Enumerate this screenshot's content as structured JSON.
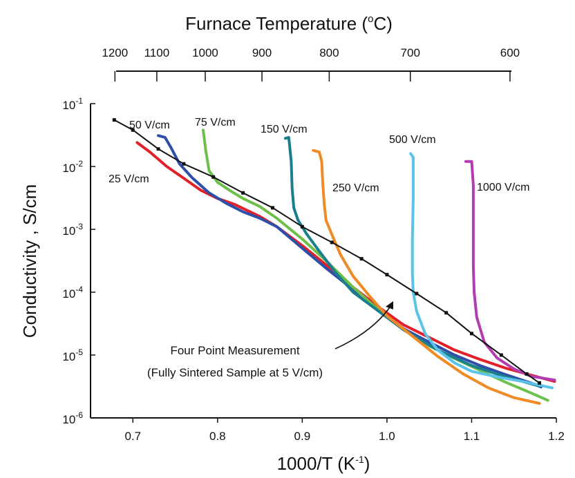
{
  "chart_data": {
    "type": "line",
    "xlabel": "1000/T (K",
    "xlabel_sup": "-1",
    "xlabel_close": ")",
    "ylabel": "Conductivity , S/cm",
    "top_axis_title": "Furnace Temperature (",
    "top_axis_title_sup": "o",
    "top_axis_title_close": "C)",
    "xlim": [
      0.65,
      1.2
    ],
    "ylim_log10": [
      -6,
      -1
    ],
    "x_ticks": [
      "0.7",
      "0.8",
      "0.9",
      "1.0",
      "1.1",
      "1.2"
    ],
    "y_ticks": [
      {
        "base": "10",
        "exp": "-1"
      },
      {
        "base": "10",
        "exp": "-2"
      },
      {
        "base": "10",
        "exp": "-3"
      },
      {
        "base": "10",
        "exp": "-4"
      },
      {
        "base": "10",
        "exp": "-5"
      },
      {
        "base": "10",
        "exp": "-6"
      }
    ],
    "top_ticks_celsius": [
      "1200",
      "1100",
      "1000",
      "900",
      "800",
      "700",
      "600"
    ],
    "series": [
      {
        "name": "Four Point Measurement",
        "color": "#111111",
        "markers": true,
        "x": [
          0.678,
          0.7,
          0.73,
          0.76,
          0.795,
          0.83,
          0.865,
          0.9,
          0.935,
          0.97,
          1.0,
          1.035,
          1.07,
          1.1,
          1.135,
          1.165,
          1.18
        ],
        "y": [
          0.055,
          0.038,
          0.019,
          0.011,
          0.0068,
          0.0038,
          0.0022,
          0.0011,
          0.00062,
          0.00034,
          0.00019,
          9.5e-05,
          4.7e-05,
          2.2e-05,
          1e-05,
          5e-06,
          3.6e-06
        ]
      },
      {
        "name": "25 V/cm",
        "color": "#e2202a",
        "markers": false,
        "x": [
          0.705,
          0.72,
          0.74,
          0.76,
          0.78,
          0.8,
          0.82,
          0.85,
          0.87,
          0.9,
          0.93,
          0.96,
          0.99,
          1.02,
          1.05,
          1.08,
          1.11,
          1.14,
          1.17,
          1.198
        ],
        "y": [
          0.024,
          0.017,
          0.01,
          0.0065,
          0.0042,
          0.0031,
          0.0025,
          0.0016,
          0.0011,
          0.00055,
          0.00026,
          0.00012,
          5.8e-05,
          3e-05,
          1.9e-05,
          1.2e-05,
          8.5e-06,
          6.2e-06,
          4.8e-06,
          3.8e-06
        ]
      },
      {
        "name": "50 V/cm",
        "color": "#2e4fa8",
        "markers": false,
        "x": [
          0.73,
          0.738,
          0.745,
          0.755,
          0.77,
          0.79,
          0.81,
          0.83,
          0.85,
          0.87,
          0.9,
          0.93,
          0.96,
          0.99,
          1.02,
          1.05,
          1.08,
          1.11,
          1.14,
          1.17,
          1.182
        ],
        "y": [
          0.031,
          0.029,
          0.02,
          0.011,
          0.0066,
          0.0038,
          0.0026,
          0.0019,
          0.0015,
          0.0011,
          0.0005,
          0.00023,
          0.00011,
          5.2e-05,
          2.6e-05,
          1.6e-05,
          1e-05,
          6.8e-06,
          4.9e-06,
          3.6e-06,
          3.1e-06
        ]
      },
      {
        "name": "75 V/cm",
        "color": "#6cc04a",
        "markers": false,
        "x": [
          0.783,
          0.784,
          0.786,
          0.79,
          0.8,
          0.815,
          0.83,
          0.85,
          0.87,
          0.9,
          0.93,
          0.96,
          0.99,
          1.02,
          1.05,
          1.08,
          1.11,
          1.14,
          1.17,
          1.19
        ],
        "y": [
          0.038,
          0.03,
          0.018,
          0.0085,
          0.0056,
          0.0041,
          0.0031,
          0.0023,
          0.0015,
          0.0007,
          0.0003,
          0.00012,
          5.2e-05,
          2.5e-05,
          1.4e-05,
          8.8e-06,
          5.7e-06,
          3.7e-06,
          2.5e-06,
          1.9e-06
        ]
      },
      {
        "name": "150 V/cm",
        "color": "#1a7f8c",
        "markers": false,
        "x": [
          0.88,
          0.884,
          0.885,
          0.887,
          0.888,
          0.89,
          0.895,
          0.905,
          0.92,
          0.94,
          0.96,
          0.99,
          1.02,
          1.06,
          1.1,
          1.14,
          1.18
        ],
        "y": [
          0.028,
          0.029,
          0.022,
          0.012,
          0.0045,
          0.0022,
          0.0014,
          0.00085,
          0.00045,
          0.0002,
          0.0001,
          5e-05,
          2.5e-05,
          1.2e-05,
          6.8e-06,
          4.5e-06,
          3.2e-06
        ]
      },
      {
        "name": "250 V/cm",
        "color": "#f08a24",
        "markers": false,
        "x": [
          0.913,
          0.92,
          0.923,
          0.924,
          0.926,
          0.928,
          0.935,
          0.945,
          0.96,
          0.98,
          1.0,
          1.03,
          1.06,
          1.09,
          1.12,
          1.15,
          1.18
        ],
        "y": [
          0.018,
          0.017,
          0.012,
          0.006,
          0.0025,
          0.0014,
          0.00082,
          0.0004,
          0.00018,
          8.5e-05,
          4.2e-05,
          2e-05,
          9.5e-06,
          5e-06,
          3e-06,
          2.1e-06,
          1.7e-06
        ]
      },
      {
        "name": "500 V/cm",
        "color": "#5bc3e9",
        "markers": false,
        "x": [
          1.028,
          1.031,
          1.031,
          1.03,
          1.03,
          1.031,
          1.035,
          1.045,
          1.06,
          1.08,
          1.1,
          1.13,
          1.16,
          1.195
        ],
        "y": [
          0.016,
          0.014,
          0.003,
          0.0007,
          0.0002,
          0.0001,
          5e-05,
          2.2e-05,
          1.2e-05,
          7.5e-06,
          5.5e-06,
          4.5e-06,
          3.8e-06,
          3e-06
        ]
      },
      {
        "name": "1000 V/cm",
        "color": "#b33cb0",
        "markers": false,
        "x": [
          1.093,
          1.1,
          1.102,
          1.102,
          1.102,
          1.103,
          1.106,
          1.115,
          1.13,
          1.15,
          1.17,
          1.198
        ],
        "y": [
          0.012,
          0.012,
          0.005,
          0.001,
          0.00025,
          0.0001,
          4e-05,
          1.6e-05,
          9e-06,
          6e-06,
          4.6e-06,
          4e-06
        ]
      }
    ],
    "annotations": {
      "four_point_line1": "Four Point Measurement",
      "four_point_line2": "(Fully Sintered Sample at 5 V/cm)"
    }
  }
}
